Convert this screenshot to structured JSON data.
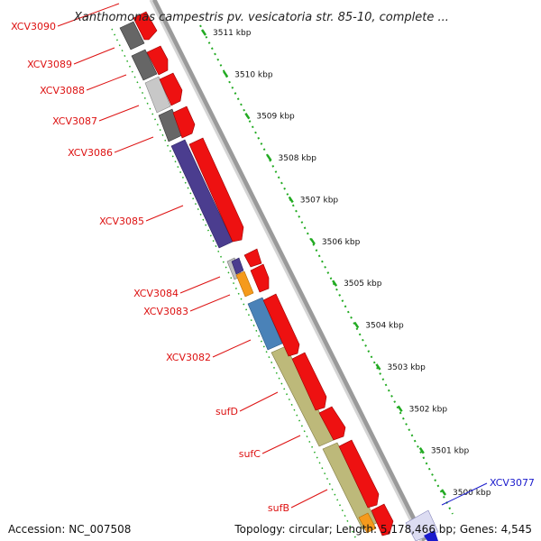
{
  "header": {
    "title": "Xanthomonas campestris pv. vesicatoria str. 85-10, complete ..."
  },
  "colors": {
    "forward_feature": "#ee1111",
    "dark_gray": "#666666",
    "light_gray": "#bfbfbf",
    "purple": "#4b3d8f",
    "orange": "#f59a1c",
    "steel_blue": "#4a82b8",
    "khaki": "#bdb97a",
    "tick_green": "#22aa22",
    "label_red": "#dd1111",
    "label_blue": "#1a1acc"
  },
  "gene_labels": [
    {
      "name": "XCV3090",
      "color": "red"
    },
    {
      "name": "XCV3089",
      "color": "red"
    },
    {
      "name": "XCV3088",
      "color": "red"
    },
    {
      "name": "XCV3087",
      "color": "red"
    },
    {
      "name": "XCV3086",
      "color": "red"
    },
    {
      "name": "XCV3085",
      "color": "red"
    },
    {
      "name": "XCV3084",
      "color": "red"
    },
    {
      "name": "XCV3083",
      "color": "red"
    },
    {
      "name": "XCV3082",
      "color": "red"
    },
    {
      "name": "sufD",
      "color": "red"
    },
    {
      "name": "sufC",
      "color": "red"
    },
    {
      "name": "sufB",
      "color": "red"
    },
    {
      "name": "XCV3077",
      "color": "blue"
    }
  ],
  "scale_ticks": [
    {
      "kbp": 3511,
      "label": "3511 kbp"
    },
    {
      "kbp": 3510,
      "label": "3510 kbp"
    },
    {
      "kbp": 3509,
      "label": "3509 kbp"
    },
    {
      "kbp": 3508,
      "label": "3508 kbp"
    },
    {
      "kbp": 3507,
      "label": "3507 kbp"
    },
    {
      "kbp": 3506,
      "label": "3506 kbp"
    },
    {
      "kbp": 3505,
      "label": "3505 kbp"
    },
    {
      "kbp": 3504,
      "label": "3504 kbp"
    },
    {
      "kbp": 3503,
      "label": "3503 kbp"
    },
    {
      "kbp": 3502,
      "label": "3502 kbp"
    },
    {
      "kbp": 3501,
      "label": "3501 kbp"
    },
    {
      "kbp": 3500,
      "label": "3500 kbp"
    }
  ],
  "footer": {
    "accession": "Accession: NC_007508",
    "topology": "Topology: circular; Length: 5,178,466 bp; Genes: 4,545"
  }
}
